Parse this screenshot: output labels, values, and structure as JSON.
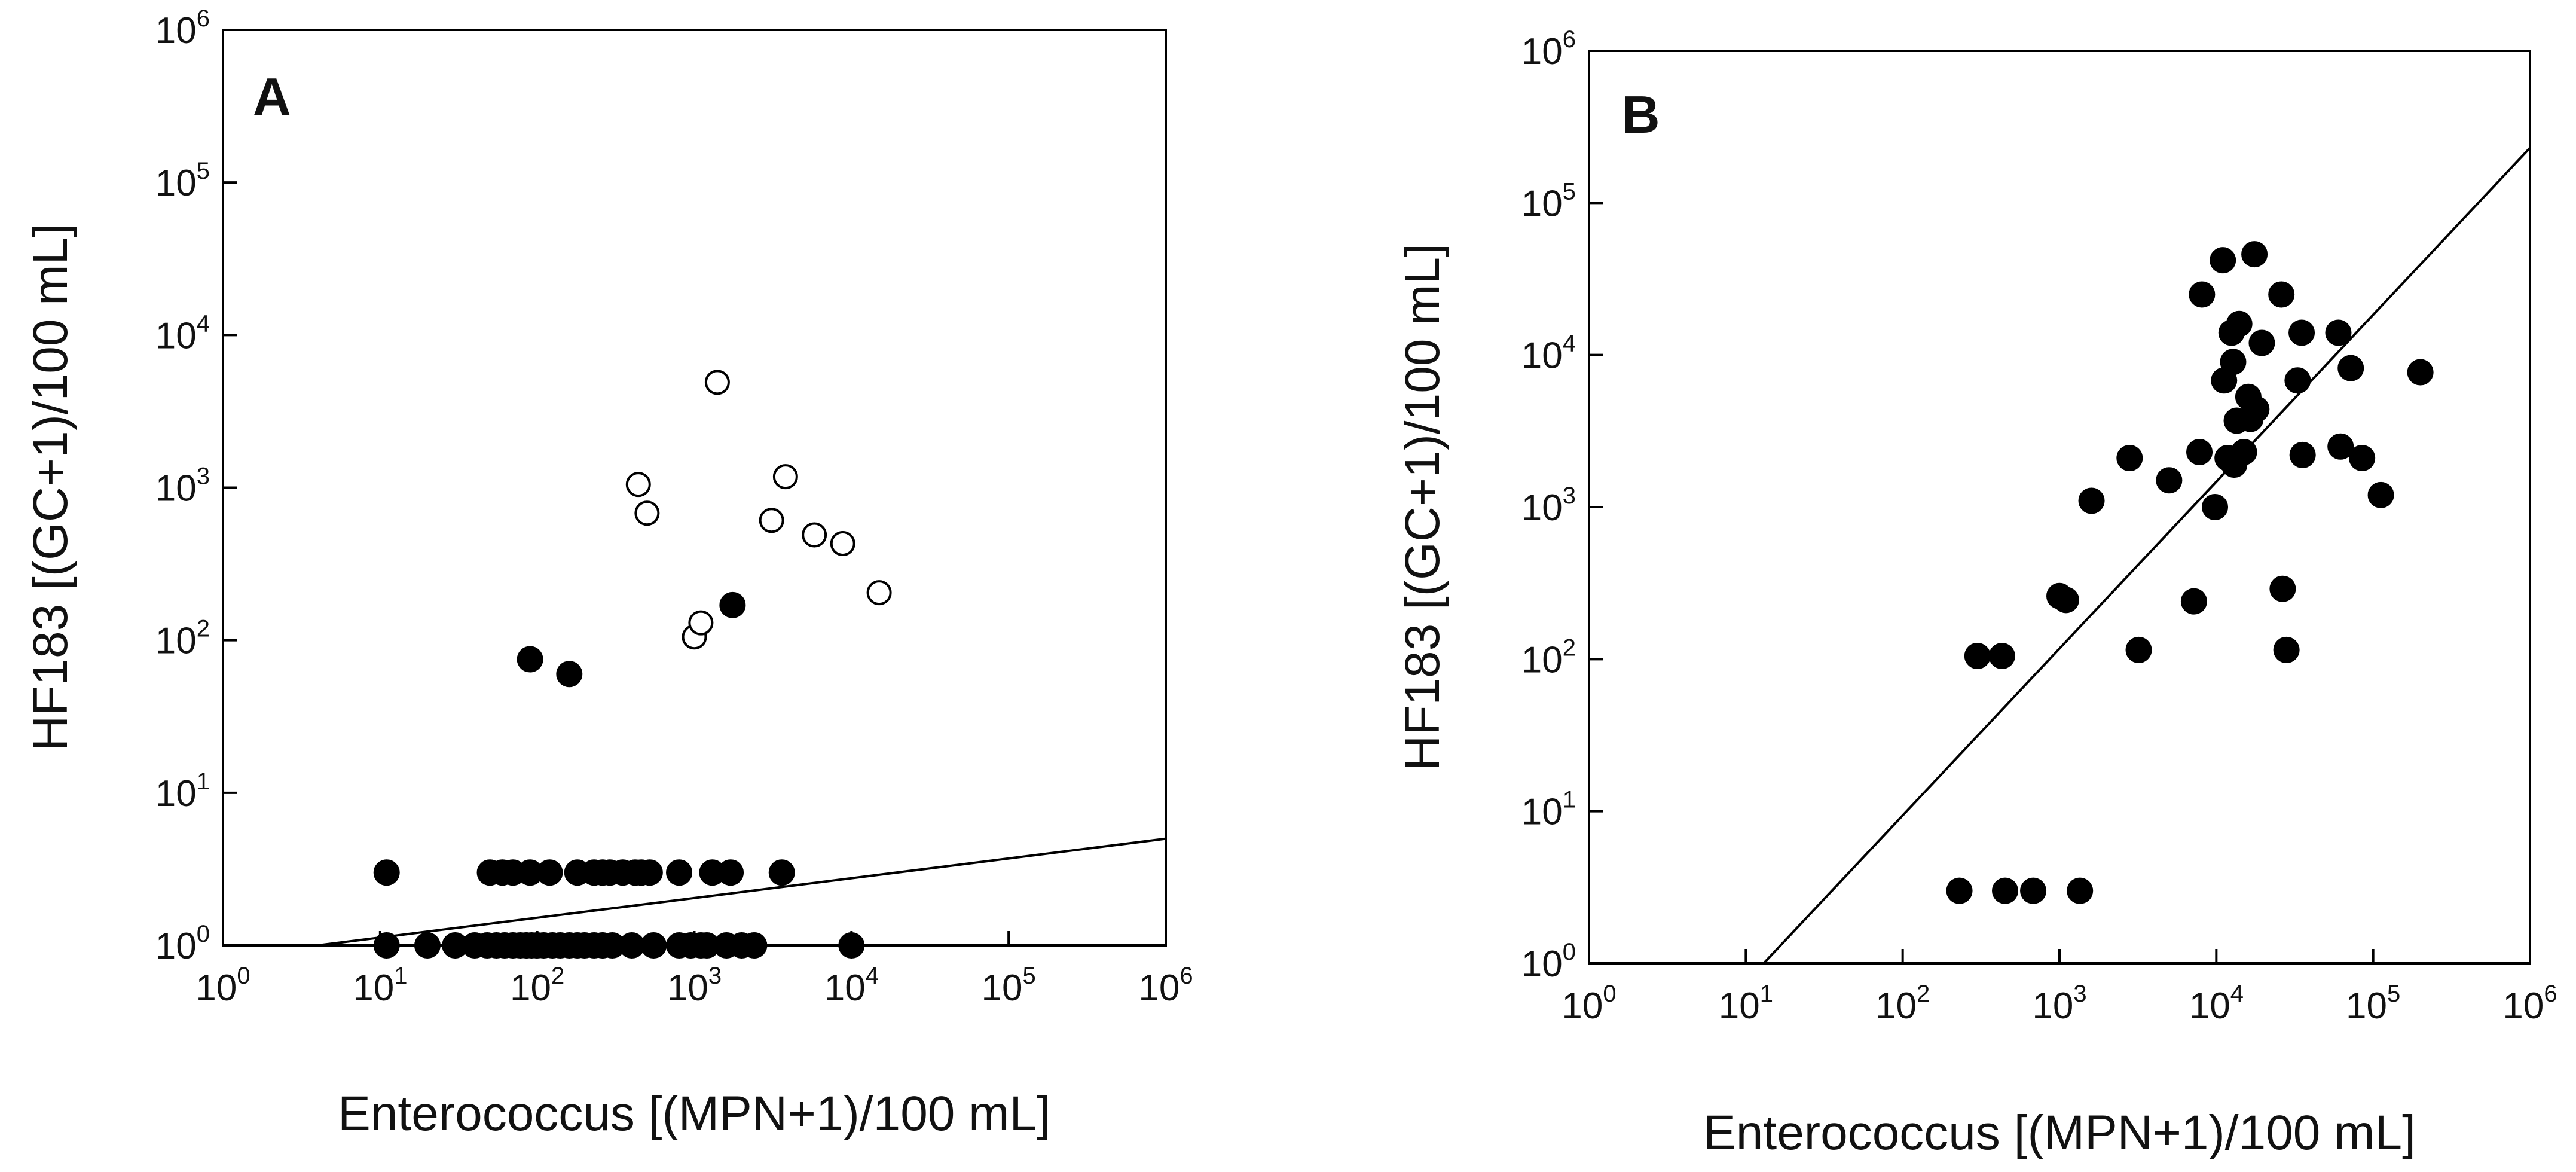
{
  "chart_data": [
    {
      "type": "scatter",
      "panel_label": "A",
      "xlabel": "Enterococcus [(MPN+1)/100 mL]",
      "ylabel": "HF183 [(GC+1)/100 mL]",
      "xscale": "log",
      "yscale": "log",
      "xlim": [
        1,
        1000000
      ],
      "ylim": [
        1,
        1000000
      ],
      "tick_base": "10",
      "tick_exponents": [
        "0",
        "1",
        "2",
        "3",
        "4",
        "5",
        "6"
      ],
      "grid": false,
      "series": [
        {
          "name": "filled",
          "marker": "filled-circle",
          "points": [
            [
              11,
              3
            ],
            [
              50,
              3
            ],
            [
              60,
              3
            ],
            [
              70,
              3
            ],
            [
              90,
              3
            ],
            [
              120,
              3
            ],
            [
              180,
              3
            ],
            [
              230,
              3
            ],
            [
              260,
              3
            ],
            [
              290,
              3
            ],
            [
              350,
              3
            ],
            [
              420,
              3
            ],
            [
              460,
              3
            ],
            [
              520,
              3
            ],
            [
              800,
              3
            ],
            [
              1300,
              3
            ],
            [
              1700,
              3
            ],
            [
              3600,
              3
            ],
            [
              11,
              1
            ],
            [
              20,
              1
            ],
            [
              30,
              1
            ],
            [
              40,
              1
            ],
            [
              48,
              1
            ],
            [
              55,
              1
            ],
            [
              62,
              1
            ],
            [
              70,
              1
            ],
            [
              78,
              1
            ],
            [
              85,
              1
            ],
            [
              92,
              1
            ],
            [
              100,
              1
            ],
            [
              110,
              1
            ],
            [
              125,
              1
            ],
            [
              140,
              1
            ],
            [
              160,
              1
            ],
            [
              180,
              1
            ],
            [
              200,
              1
            ],
            [
              230,
              1
            ],
            [
              260,
              1
            ],
            [
              300,
              1
            ],
            [
              400,
              1
            ],
            [
              550,
              1
            ],
            [
              800,
              1
            ],
            [
              950,
              1
            ],
            [
              1100,
              1
            ],
            [
              1200,
              1
            ],
            [
              1600,
              1
            ],
            [
              2000,
              1
            ],
            [
              2400,
              1
            ],
            [
              10000,
              1
            ],
            [
              90,
              75
            ],
            [
              160,
              60
            ],
            [
              1750,
              170
            ]
          ]
        },
        {
          "name": "open",
          "marker": "open-circle",
          "points": [
            [
              1400,
              4900
            ],
            [
              440,
              1050
            ],
            [
              500,
              680
            ],
            [
              3800,
              1180
            ],
            [
              3100,
              610
            ],
            [
              5800,
              490
            ],
            [
              8800,
              430
            ],
            [
              15000,
              205
            ],
            [
              1000,
              105
            ],
            [
              1100,
              130
            ]
          ]
        }
      ],
      "fit_line": {
        "x": [
          4,
          1000000
        ],
        "y": [
          1,
          5
        ]
      }
    },
    {
      "type": "scatter",
      "panel_label": "B",
      "xlabel": "Enterococcus [(MPN+1)/100 mL]",
      "ylabel": "HF183 [(GC+1)/100 mL]",
      "xscale": "log",
      "yscale": "log",
      "xlim": [
        1,
        1000000
      ],
      "ylim": [
        1,
        1000000
      ],
      "tick_base": "10",
      "tick_exponents": [
        "0",
        "1",
        "2",
        "3",
        "4",
        "5",
        "6"
      ],
      "grid": false,
      "series": [
        {
          "name": "filled",
          "marker": "filled-circle",
          "points": [
            [
              230,
              3
            ],
            [
              450,
              3
            ],
            [
              680,
              3
            ],
            [
              1350,
              3
            ],
            [
              300,
              105
            ],
            [
              430,
              105
            ],
            [
              1000,
              260
            ],
            [
              1100,
              245
            ],
            [
              1600,
              1100
            ],
            [
              3200,
              115
            ],
            [
              2800,
              2100
            ],
            [
              5000,
              1500
            ],
            [
              7200,
              240
            ],
            [
              7800,
              2300
            ],
            [
              8100,
              25000
            ],
            [
              9800,
              1000
            ],
            [
              11000,
              42000
            ],
            [
              11200,
              6800
            ],
            [
              11800,
              2100
            ],
            [
              12500,
              14000
            ],
            [
              12800,
              9000
            ],
            [
              13000,
              1900
            ],
            [
              13500,
              3700
            ],
            [
              14000,
              16000
            ],
            [
              15000,
              2300
            ],
            [
              16000,
              5300
            ],
            [
              16500,
              3800
            ],
            [
              17500,
              46000
            ],
            [
              18000,
              4400
            ],
            [
              19500,
              12000
            ],
            [
              26000,
              25000
            ],
            [
              26500,
              290
            ],
            [
              28000,
              115
            ],
            [
              33000,
              6800
            ],
            [
              35000,
              14000
            ],
            [
              35500,
              2200
            ],
            [
              60000,
              14000
            ],
            [
              62000,
              2500
            ],
            [
              72000,
              8200
            ],
            [
              85000,
              2100
            ],
            [
              112000,
              1200
            ],
            [
              200000,
              7700
            ]
          ]
        }
      ],
      "fit_line": {
        "x": [
          13,
          1000000
        ],
        "y": [
          1,
          230000
        ]
      }
    }
  ]
}
